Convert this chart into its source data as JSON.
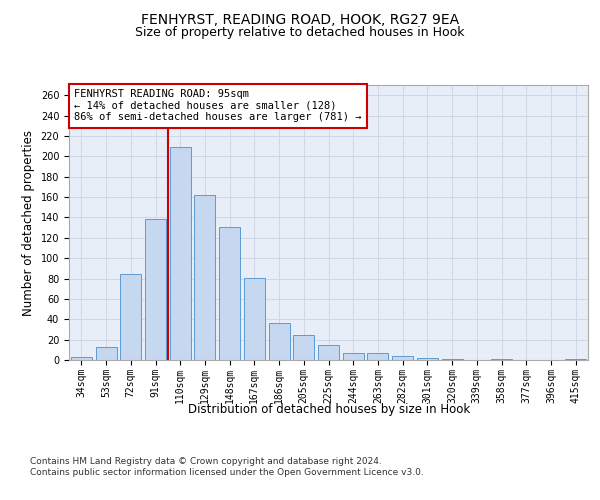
{
  "title": "FENHYRST, READING ROAD, HOOK, RG27 9EA",
  "subtitle": "Size of property relative to detached houses in Hook",
  "xlabel": "Distribution of detached houses by size in Hook",
  "ylabel": "Number of detached properties",
  "categories": [
    "34sqm",
    "53sqm",
    "72sqm",
    "91sqm",
    "110sqm",
    "129sqm",
    "148sqm",
    "167sqm",
    "186sqm",
    "205sqm",
    "225sqm",
    "244sqm",
    "263sqm",
    "282sqm",
    "301sqm",
    "320sqm",
    "339sqm",
    "358sqm",
    "377sqm",
    "396sqm",
    "415sqm"
  ],
  "values": [
    3,
    13,
    84,
    138,
    209,
    162,
    131,
    81,
    36,
    25,
    15,
    7,
    7,
    4,
    2,
    1,
    0,
    1,
    0,
    0,
    1
  ],
  "bar_color": "#c5d8f0",
  "bar_edge_color": "#5b9bd5",
  "vline_x": 3.5,
  "vline_color": "#cc0000",
  "annotation_text": "FENHYRST READING ROAD: 95sqm\n← 14% of detached houses are smaller (128)\n86% of semi-detached houses are larger (781) →",
  "annotation_box_color": "#ffffff",
  "annotation_box_edge": "#cc0000",
  "ylim": [
    0,
    270
  ],
  "yticks": [
    0,
    20,
    40,
    60,
    80,
    100,
    120,
    140,
    160,
    180,
    200,
    220,
    240,
    260
  ],
  "grid_color": "#d0d8e8",
  "bg_color": "#e8eef8",
  "footer_text": "Contains HM Land Registry data © Crown copyright and database right 2024.\nContains public sector information licensed under the Open Government Licence v3.0.",
  "title_fontsize": 10,
  "subtitle_fontsize": 9,
  "label_fontsize": 8.5,
  "tick_fontsize": 7,
  "annotation_fontsize": 7.5,
  "footer_fontsize": 6.5
}
